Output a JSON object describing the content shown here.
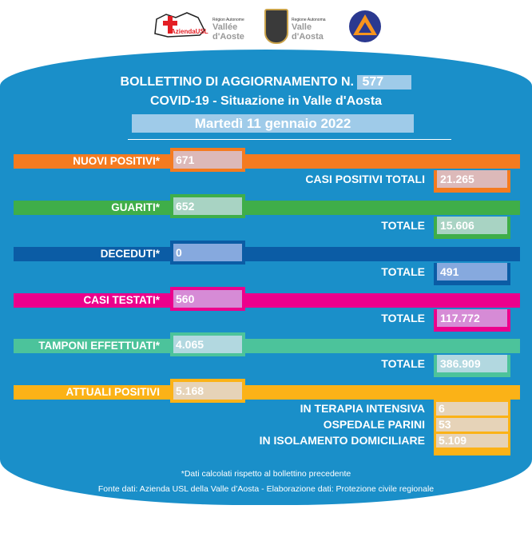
{
  "logos": {
    "usl": "Azienda USL",
    "vda_fr_small": "Région Autonome",
    "vda_fr": "Vallée d'Aoste",
    "vda_it_small": "Regione Autonoma",
    "vda_it": "Valle d'Aosta"
  },
  "header": {
    "title_prefix": "BOLLETTINO DI AGGIORNAMENTO N.",
    "number": "577",
    "subtitle": "COVID-19 - Situazione in Valle d'Aosta",
    "date": "Martedì 11 gennaio 2022"
  },
  "colors": {
    "background": "#1a8fc9",
    "nuovi": "#f47b20",
    "guariti": "#3fae49",
    "deceduti": "#0b5ca5",
    "testati": "#ec008c",
    "tamponi": "#4cc39b",
    "attuali": "#fbb217"
  },
  "rows": [
    {
      "label": "NUOVI POSITIVI*",
      "value": "671",
      "total_label": "CASI POSITIVI TOTALI",
      "total": "21.265"
    },
    {
      "label": "GUARITI*",
      "value": "652",
      "total_label": "TOTALE",
      "total": "15.606"
    },
    {
      "label": "DECEDUTI*",
      "value": "0",
      "total_label": "TOTALE",
      "total": "491"
    },
    {
      "label": "CASI TESTATI*",
      "value": "560",
      "total_label": "TOTALE",
      "total": "117.772"
    },
    {
      "label": "TAMPONI EFFETTUATI*",
      "value": "4.065",
      "total_label": "TOTALE",
      "total": "386.909"
    }
  ],
  "attuali": {
    "label": "ATTUALI POSITIVI",
    "value": "5.168",
    "details": [
      {
        "label": "IN TERAPIA INTENSIVA",
        "value": "6"
      },
      {
        "label": "OSPEDALE PARINI",
        "value": "53"
      },
      {
        "label": "IN ISOLAMENTO DOMICILIARE",
        "value": "5.109"
      }
    ]
  },
  "footer": {
    "note": "*Dati calcolati rispetto al bollettino precedente",
    "source": "Fonte dati: Azienda USL della Valle d’Aosta - Elaborazione dati: Protezione civile regionale"
  }
}
